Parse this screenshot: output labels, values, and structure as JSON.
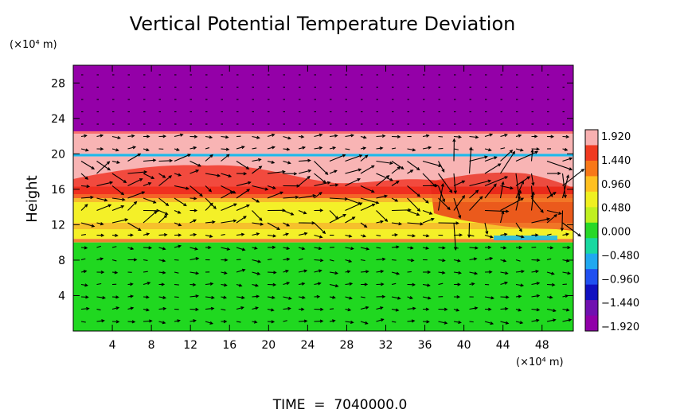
{
  "chart_data": {
    "type": "heatmap",
    "title": "Vertical Potential Temperature Deviation",
    "ylabel": "Height",
    "y_unit": "(×10⁴ m)",
    "x_unit": "(×10⁴ m)",
    "footer": "TIME  =  7040000.0",
    "xticks": [
      4,
      8,
      12,
      16,
      20,
      24,
      28,
      32,
      36,
      40,
      44,
      48
    ],
    "yticks": [
      4,
      8,
      12,
      16,
      20,
      24,
      28
    ],
    "xlim": [
      0,
      51.2
    ],
    "ylim": [
      0,
      30
    ],
    "colorbar": {
      "labels": [
        "1.920",
        "1.440",
        "0.960",
        "0.480",
        "0.000",
        "−0.480",
        "−0.960",
        "−1.440",
        "−1.920"
      ],
      "colors": [
        "#f8b0b0",
        "#f03a20",
        "#f87818",
        "#ffc020",
        "#f0f020",
        "#c0f020",
        "#28d828",
        "#18d8a0",
        "#20a8f0",
        "#2050f0",
        "#1010c0",
        "#7010b0",
        "#9000a8"
      ]
    },
    "bands": [
      {
        "from": 22.5,
        "to": 30,
        "color": "#9400a8"
      },
      {
        "from": 20.0,
        "to": 22.5,
        "color": "#f8b4b4"
      },
      {
        "from": 19.7,
        "to": 20.0,
        "color": "#20b8e8"
      },
      {
        "from": 16.3,
        "to": 19.7,
        "color": "#f8b4b4"
      },
      {
        "from": 15.0,
        "to": 16.3,
        "color": "#f03020"
      },
      {
        "from": 10.4,
        "to": 15.0,
        "color": "#f4f028"
      },
      {
        "from": 10.0,
        "to": 10.4,
        "color": "#f08030"
      },
      {
        "from": 0,
        "to": 10.0,
        "color": "#20d820"
      }
    ]
  }
}
